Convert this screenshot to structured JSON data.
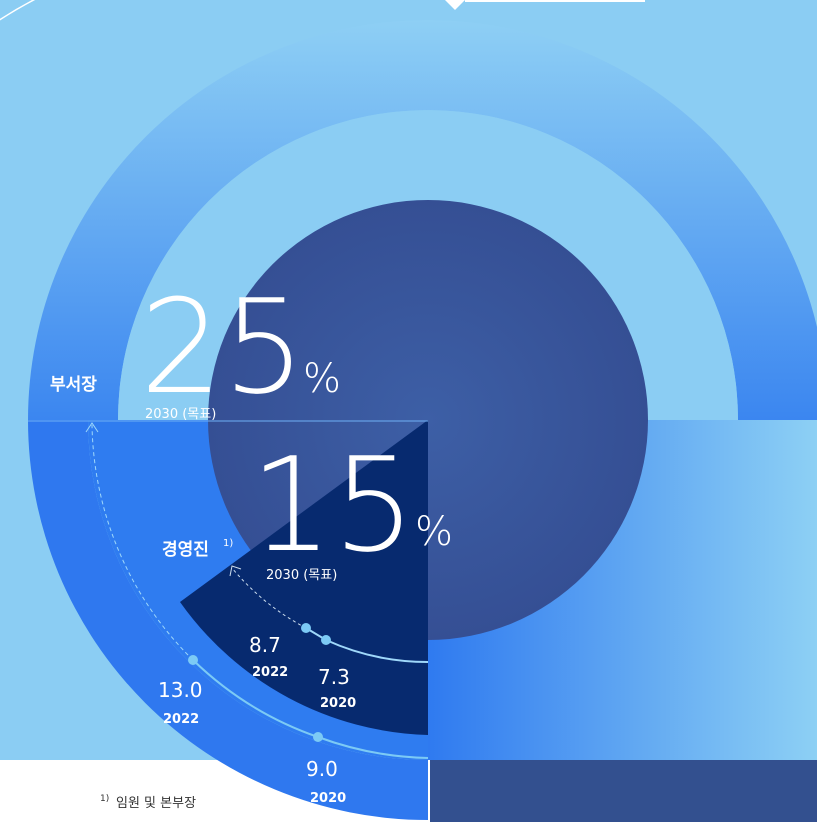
{
  "groups": [
    {
      "label": "부서장",
      "target": "25",
      "unit": "%",
      "target_year": "2030 (목표)",
      "points": [
        {
          "value": "13.0",
          "year": "2022"
        },
        {
          "value": "9.0",
          "year": "2020"
        }
      ]
    },
    {
      "label": "경영진",
      "label_note": "1)",
      "target": "15",
      "unit": "%",
      "target_year": "2030 (목표)",
      "points": [
        {
          "value": "8.7",
          "year": "2022"
        },
        {
          "value": "7.3",
          "year": "2020"
        }
      ]
    }
  ],
  "footnote": {
    "mark": "1)",
    "text": "임원 및 본부장"
  }
}
